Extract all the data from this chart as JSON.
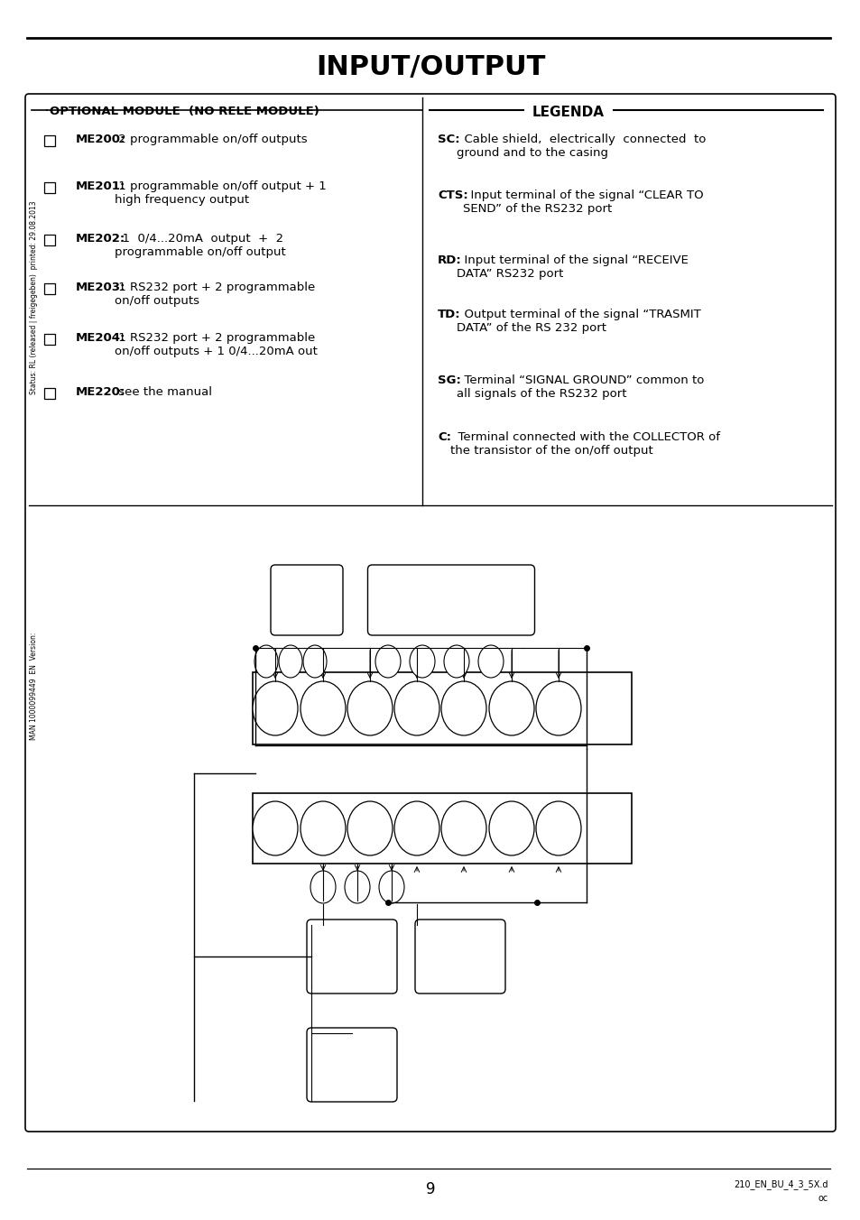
{
  "title": "INPUT/OUTPUT",
  "title_fontsize": 22,
  "title_fontweight": "bold",
  "bg_color": "#ffffff",
  "left_panel_title": "OPTIONAL MODULE  (NO RELE MODULE)",
  "left_items": [
    {
      "label": "ME200:",
      "text": " 2 programmable on/off outputs"
    },
    {
      "label": "ME201:",
      "text": " 1 programmable on/off output + 1\nhigh frequency output"
    },
    {
      "label": "ME202:",
      "text": "  1  0/4...20mA  output  +  2\nprogrammable on/off output"
    },
    {
      "label": "ME203:",
      "text": " 1 RS232 port + 2 programmable\non/off outputs"
    },
    {
      "label": "ME204:",
      "text": " 1 RS232 port + 2 programmable\non/off outputs + 1 0/4...20mA out"
    },
    {
      "label": "ME220:",
      "text": " see the manual"
    }
  ],
  "right_panel_title": "LEGENDA",
  "right_items": [
    {
      "label": "SC:",
      "text": "  Cable shield,  electrically  connected  to\nground and to the casing"
    },
    {
      "label": "CTS:",
      "text": "  Input terminal of the signal “CLEAR TO\nSEND” of the RS232 port"
    },
    {
      "label": "RD:",
      "text": "  Input terminal of the signal “RECEIVE\nDATA” RS232 port"
    },
    {
      "label": "TD:",
      "text": "  Output terminal of the signal “TRASMIT\nDATA” of the RS 232 port"
    },
    {
      "label": "SG:",
      "text": "  Terminal “SIGNAL GROUND” common to\nall signals of the RS232 port"
    },
    {
      "label": "C:",
      "text": "  Terminal connected with the COLLECTOR of\nthe transistor of the on/off output"
    }
  ],
  "watermark_upper": "Status: RL (released | freigegeben)  printed: 29.08.2013",
  "watermark_lower": "MAN 1000099449  EN  Version:",
  "footer_page": "9",
  "footer_right_line1": "210_EN_BU_4_3_5X.d",
  "footer_right_line2": "oc"
}
